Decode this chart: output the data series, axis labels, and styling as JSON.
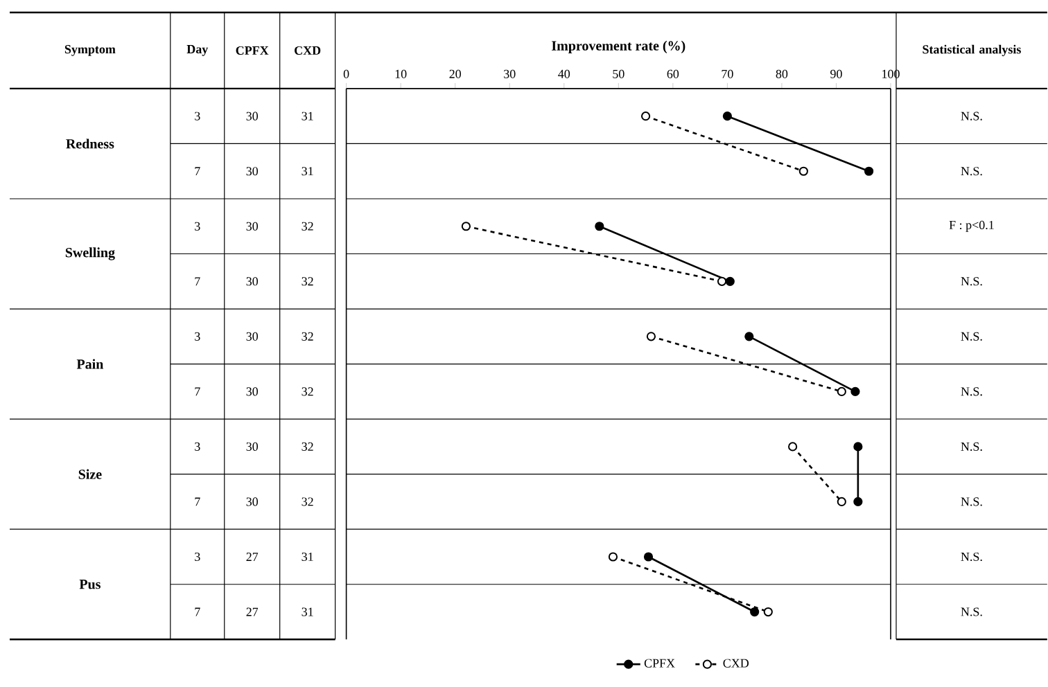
{
  "chart_data": {
    "type": "line",
    "orientation": "horizontal",
    "xlabel": "Improvement rate (%)",
    "categories": [
      null,
      null,
      null,
      null,
      null,
      null,
      null,
      null,
      null,
      null
    ],
    "xlim": [
      0,
      100
    ],
    "xticks": [
      0,
      10,
      20,
      30,
      40,
      50,
      60,
      70,
      80,
      90,
      100
    ],
    "marker": "circle",
    "legend": "bottom",
    "series": [
      {
        "name": "CPFX",
        "color": "#000000",
        "line_style": "solid",
        "values": [
          70,
          96,
          46.5,
          70.5,
          74,
          93.5,
          94,
          94,
          55.5,
          75
        ]
      },
      {
        "name": "CXD",
        "color": "#000000",
        "line_style": "dashed",
        "values": [
          55,
          84,
          22,
          69,
          56,
          91,
          82,
          91,
          49,
          77.5
        ]
      }
    ],
    "annotations": [
      "Symptom",
      "Day",
      "CPFX",
      "CXD",
      "Statistical analysis",
      "Redness",
      "Swelling",
      "Pain",
      "Size",
      "Pus",
      "30",
      "31",
      "30",
      "31",
      "30",
      "32",
      "30",
      "32",
      "30",
      "32",
      "30",
      "32",
      "30",
      "32",
      "30",
      "32",
      "27",
      "31",
      "27",
      "31",
      "N.S.",
      "N.S.",
      "F : p<0.1",
      "N.S.",
      "N.S.",
      "N.S.",
      "N.S.",
      "N.S.",
      "N.S.",
      "N.S.",
      "3",
      "7",
      "3",
      "7",
      "3",
      "7",
      "3",
      "7",
      "3",
      "7"
    ]
  }
}
